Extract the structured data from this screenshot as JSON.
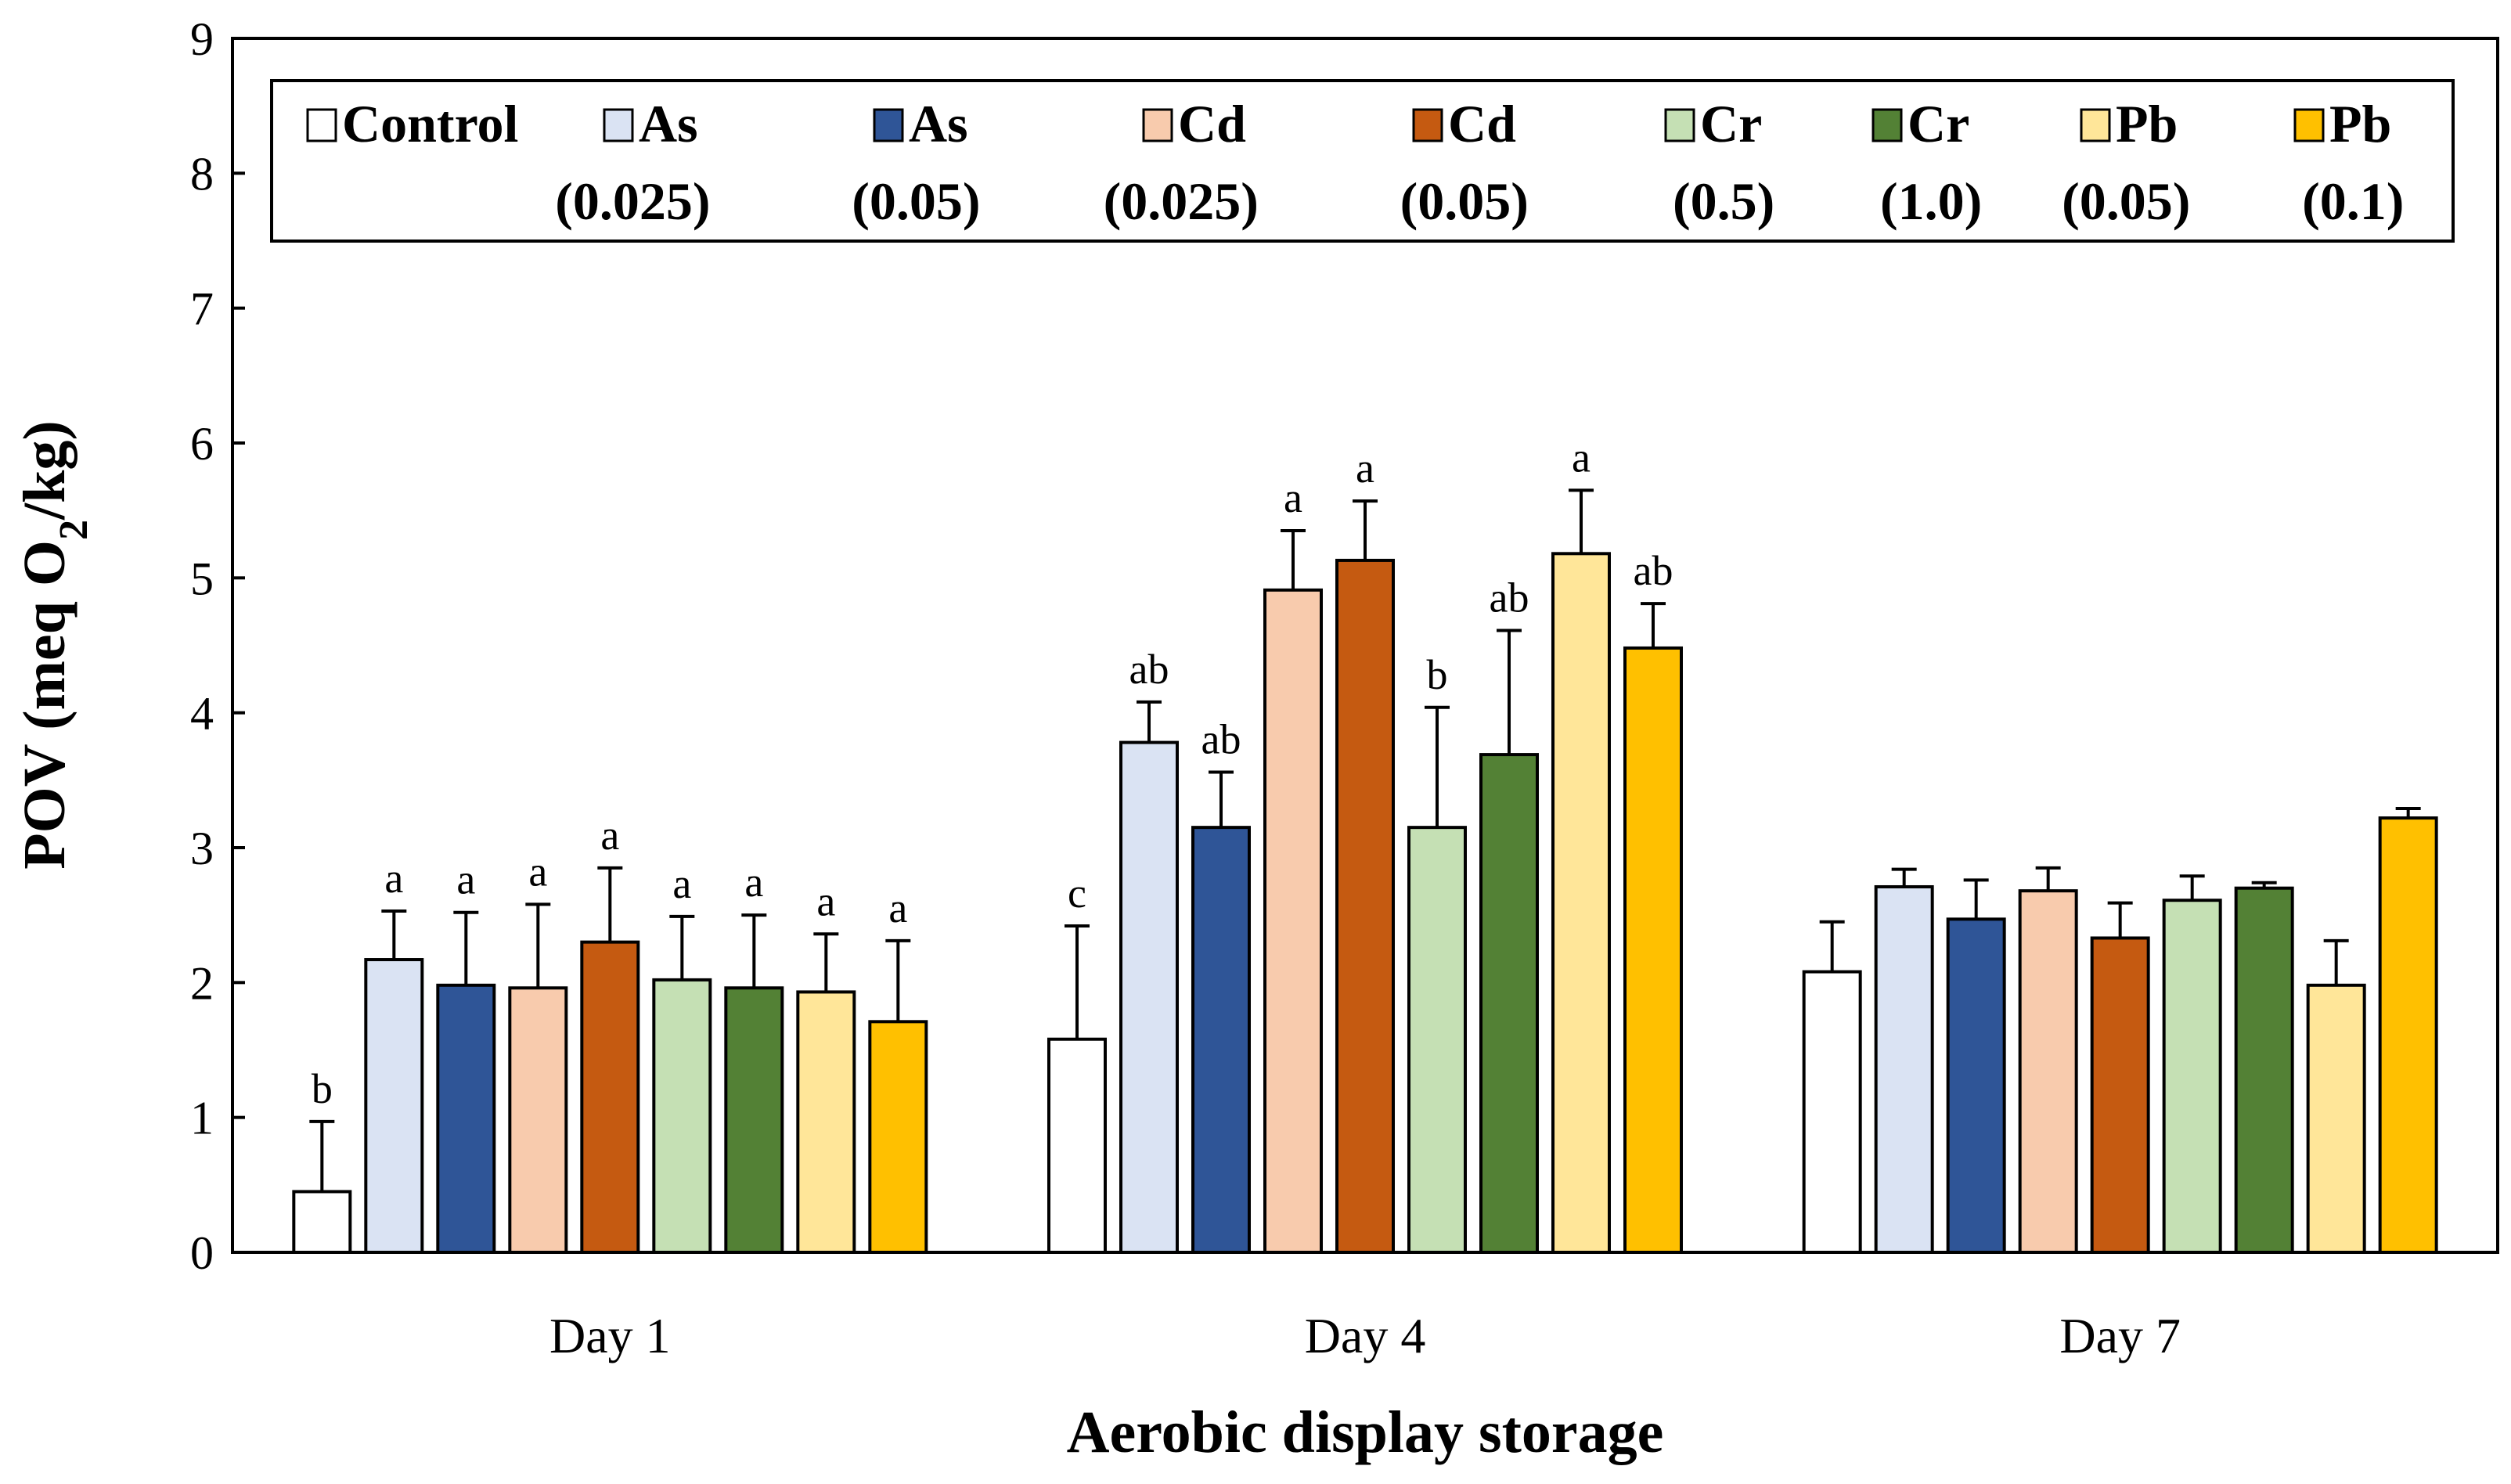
{
  "chart_data": {
    "type": "bar",
    "title": "",
    "xlabel": "Aerobic display storage",
    "ylabel": {
      "prefix": "POV (meq O",
      "subscript": "2",
      "suffix": "/kg)"
    },
    "ylim": [
      0,
      9
    ],
    "yticks": [
      "0",
      "1",
      "2",
      "3",
      "4",
      "5",
      "6",
      "7",
      "8",
      "9"
    ],
    "categories": [
      "Day 1",
      "Day 4",
      "Day 7"
    ],
    "legend_position": "top",
    "series": [
      {
        "name": "Control",
        "conc": "",
        "color": "#ffffff",
        "values": [
          0.45,
          1.58,
          2.08
        ],
        "errors": [
          0.52,
          0.84,
          0.37
        ],
        "letters": [
          "b",
          "c",
          ""
        ]
      },
      {
        "name": "As",
        "conc": "(0.025)",
        "color": "#dae3f3",
        "values": [
          2.17,
          3.78,
          2.71
        ],
        "errors": [
          0.36,
          0.3,
          0.13
        ],
        "letters": [
          "a",
          "ab",
          ""
        ]
      },
      {
        "name": "As",
        "conc": "(0.05)",
        "color": "#2f5597",
        "values": [
          1.98,
          3.15,
          2.47
        ],
        "errors": [
          0.54,
          0.41,
          0.29
        ],
        "letters": [
          "a",
          "ab",
          ""
        ]
      },
      {
        "name": "Cd",
        "conc": "(0.025)",
        "color": "#f8cbad",
        "values": [
          1.96,
          4.91,
          2.68
        ],
        "errors": [
          0.62,
          0.44,
          0.17
        ],
        "letters": [
          "a",
          "a",
          ""
        ]
      },
      {
        "name": "Cd",
        "conc": "(0.05)",
        "color": "#c55a11",
        "values": [
          2.3,
          5.13,
          2.33
        ],
        "errors": [
          0.55,
          0.44,
          0.26
        ],
        "letters": [
          "a",
          "a",
          ""
        ]
      },
      {
        "name": "Cr",
        "conc": "(0.5)",
        "color": "#c5e0b4",
        "values": [
          2.02,
          3.15,
          2.61
        ],
        "errors": [
          0.47,
          0.89,
          0.18
        ],
        "letters": [
          "a",
          "b",
          ""
        ]
      },
      {
        "name": "Cr",
        "conc": "(1.0)",
        "color": "#538135",
        "values": [
          1.96,
          3.69,
          2.7
        ],
        "errors": [
          0.54,
          0.92,
          0.04
        ],
        "letters": [
          "a",
          "ab",
          ""
        ]
      },
      {
        "name": "Pb",
        "conc": "(0.05)",
        "color": "#ffe699",
        "values": [
          1.93,
          5.18,
          1.98
        ],
        "errors": [
          0.43,
          0.47,
          0.33
        ],
        "letters": [
          "a",
          "a",
          ""
        ]
      },
      {
        "name": "Pb",
        "conc": "(0.1)",
        "color": "#ffc000",
        "values": [
          1.71,
          4.48,
          3.22
        ],
        "errors": [
          0.6,
          0.33,
          0.07
        ],
        "letters": [
          "a",
          "ab",
          ""
        ]
      }
    ]
  }
}
